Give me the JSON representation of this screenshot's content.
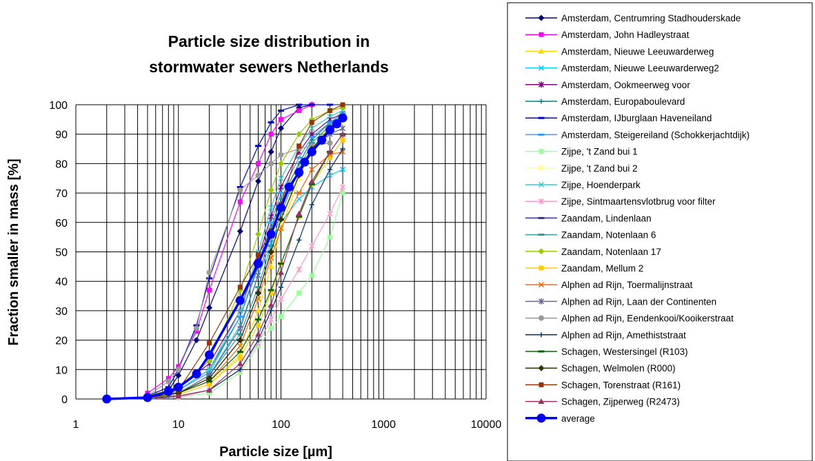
{
  "chart_data": {
    "type": "line",
    "title_lines": [
      "Particle size distribution in",
      "stormwater sewers Netherlands"
    ],
    "xlabel": "Particle size [µm]",
    "ylabel": "Fraction smaller in mass [%]",
    "x_scale": "log",
    "xlim": [
      1,
      10000
    ],
    "ylim": [
      0,
      100
    ],
    "x_ticks": [
      "1",
      "10",
      "100",
      "1000",
      "10000"
    ],
    "y_ticks": [
      "0",
      "10",
      "20",
      "30",
      "40",
      "50",
      "60",
      "70",
      "80",
      "90",
      "100"
    ],
    "grid": true,
    "legend_position": "right",
    "series": [
      {
        "name": "Amsterdam, Centrumring Stadhouderskade",
        "color": "#000080",
        "marker": "diamond",
        "x": [
          5,
          8,
          10,
          15,
          20,
          40,
          60,
          80,
          100,
          150,
          200
        ],
        "y": [
          1,
          3,
          8,
          20,
          31,
          57,
          74,
          84,
          92,
          99,
          100
        ]
      },
      {
        "name": "Amsterdam, John Hadleystraat",
        "color": "#ff00ff",
        "marker": "square",
        "x": [
          5,
          8,
          10,
          15,
          20,
          40,
          60,
          80,
          100,
          150,
          200
        ],
        "y": [
          2,
          7,
          11,
          23,
          37,
          67,
          80,
          90,
          95,
          98,
          100
        ]
      },
      {
        "name": "Amsterdam, Nieuwe Leeuwarderweg",
        "color": "#ffd700",
        "marker": "triangle",
        "x": [
          5,
          10,
          20,
          40,
          60,
          80,
          100,
          150,
          200,
          300,
          400
        ],
        "y": [
          0.5,
          1.5,
          5,
          15,
          30,
          45,
          58,
          75,
          85,
          93,
          96
        ]
      },
      {
        "name": "Amsterdam, Nieuwe Leeuwarderweg2",
        "color": "#00ccff",
        "marker": "x",
        "x": [
          5,
          10,
          20,
          40,
          60,
          80,
          100,
          150,
          200,
          300,
          400
        ],
        "y": [
          0.5,
          2,
          8,
          25,
          42,
          53,
          60,
          68,
          72,
          76,
          78
        ]
      },
      {
        "name": "Amsterdam, Ookmeerweg voor",
        "color": "#800080",
        "marker": "star",
        "x": [
          5,
          10,
          20,
          40,
          60,
          80,
          100,
          150,
          200,
          300,
          400
        ],
        "y": [
          1,
          4,
          12,
          30,
          48,
          62,
          72,
          84,
          90,
          95,
          97
        ]
      },
      {
        "name": "Amsterdam, Europaboulevard",
        "color": "#008080",
        "marker": "plus",
        "x": [
          5,
          10,
          20,
          40,
          60,
          80,
          100,
          150,
          200,
          300,
          400
        ],
        "y": [
          1,
          3,
          10,
          28,
          45,
          58,
          68,
          80,
          88,
          94,
          96
        ]
      },
      {
        "name": "Amsterdam, IJburglaan Haveneiland",
        "color": "#0000cc",
        "marker": "dash",
        "x": [
          5,
          8,
          10,
          15,
          20,
          40,
          60,
          80,
          100,
          150,
          200,
          300
        ],
        "y": [
          1,
          4,
          10,
          25,
          41,
          72,
          86,
          94,
          98,
          100,
          100,
          100
        ]
      },
      {
        "name": "Amsterdam, Steigereiland (Schokkerjachtdijk)",
        "color": "#3399ff",
        "marker": "dash",
        "x": [
          5,
          10,
          20,
          40,
          60,
          80,
          100,
          150,
          200,
          300,
          400
        ],
        "y": [
          1,
          3,
          9,
          28,
          46,
          60,
          70,
          82,
          89,
          94,
          97
        ]
      },
      {
        "name": "Zijpe, 't Zand bui 1",
        "color": "#99ff99",
        "marker": "square",
        "x": [
          5,
          10,
          20,
          40,
          60,
          80,
          100,
          150,
          200,
          300,
          400
        ],
        "y": [
          0,
          0.5,
          2,
          9,
          18,
          24,
          28,
          36,
          42,
          55,
          70
        ]
      },
      {
        "name": "Zijpe, 't Zand bui 2",
        "color": "#ffff99",
        "marker": "circle",
        "x": [
          5,
          10,
          20,
          40,
          60,
          80,
          100,
          150,
          200,
          300,
          400
        ],
        "y": [
          0.5,
          2,
          6,
          18,
          34,
          48,
          60,
          75,
          84,
          91,
          94
        ]
      },
      {
        "name": "Zijpe, Hoenderpark",
        "color": "#33cccc",
        "marker": "x",
        "x": [
          5,
          10,
          20,
          40,
          60,
          80,
          100,
          150,
          200,
          300,
          400
        ],
        "y": [
          1,
          3,
          10,
          30,
          50,
          65,
          75,
          86,
          92,
          96,
          98
        ]
      },
      {
        "name": "Zijpe, Sintmaartensvlotbrug voor filter",
        "color": "#ff99cc",
        "marker": "star",
        "x": [
          5,
          10,
          20,
          40,
          60,
          80,
          100,
          150,
          200,
          300,
          400
        ],
        "y": [
          0,
          0.5,
          3,
          10,
          19,
          27,
          34,
          44,
          52,
          63,
          72
        ]
      },
      {
        "name": "Zaandam, Lindenlaan",
        "color": "#333399",
        "marker": "dash",
        "x": [
          5,
          10,
          20,
          40,
          60,
          80,
          100,
          150,
          200,
          300,
          400
        ],
        "y": [
          0.5,
          2,
          7,
          20,
          36,
          50,
          61,
          76,
          85,
          92,
          95
        ]
      },
      {
        "name": "Zaandam, Notenlaan 6",
        "color": "#339999",
        "marker": "dash",
        "x": [
          5,
          10,
          20,
          40,
          60,
          80,
          100,
          150,
          200,
          300,
          400
        ],
        "y": [
          0.5,
          2,
          8,
          22,
          38,
          52,
          63,
          78,
          87,
          93,
          96
        ]
      },
      {
        "name": "Zaandam, Notenlaan 17",
        "color": "#99cc00",
        "marker": "diamond",
        "x": [
          5,
          10,
          20,
          40,
          60,
          80,
          100,
          150,
          200,
          300,
          400
        ],
        "y": [
          1,
          4,
          13,
          37,
          56,
          71,
          80,
          90,
          95,
          98,
          99
        ]
      },
      {
        "name": "Zaandam, Mellum 2",
        "color": "#ffcc00",
        "marker": "square",
        "x": [
          5,
          10,
          20,
          40,
          60,
          80,
          100,
          150,
          200,
          300,
          400
        ],
        "y": [
          0.5,
          1.5,
          5,
          14,
          25,
          36,
          46,
          62,
          73,
          82,
          88
        ]
      },
      {
        "name": "Alphen ad Rijn, Toermalijnstraat",
        "color": "#ff6600",
        "marker": "x",
        "x": [
          5,
          10,
          20,
          40,
          60,
          80,
          100,
          150,
          200,
          300,
          400
        ],
        "y": [
          0.5,
          2,
          6,
          18,
          34,
          48,
          58,
          70,
          78,
          83,
          84
        ]
      },
      {
        "name": "Alphen ad Rijn, Laan der Continenten",
        "color": "#666699",
        "marker": "star",
        "x": [
          5,
          10,
          20,
          40,
          60,
          80,
          100,
          150,
          200,
          300,
          400
        ],
        "y": [
          0.5,
          2,
          8,
          24,
          42,
          56,
          66,
          78,
          85,
          90,
          92
        ]
      },
      {
        "name": "Alphen ad Rijn, Eendenkooi/Kooikerstraat",
        "color": "#999999",
        "marker": "circle",
        "x": [
          5,
          8,
          10,
          15,
          20,
          40,
          60,
          80,
          100,
          150,
          200,
          300
        ],
        "y": [
          1,
          6,
          10,
          24,
          43,
          71,
          76,
          80,
          83,
          85,
          86,
          87
        ]
      },
      {
        "name": "Alphen ad Rijn, Amethiststraat",
        "color": "#003366",
        "marker": "plus",
        "x": [
          5,
          10,
          20,
          40,
          60,
          80,
          100,
          150,
          200,
          300,
          400
        ],
        "y": [
          0,
          1,
          3,
          10,
          20,
          30,
          38,
          54,
          66,
          78,
          85
        ]
      },
      {
        "name": "Schagen, Westersingel (R103)",
        "color": "#006600",
        "marker": "dash",
        "x": [
          5,
          10,
          20,
          40,
          60,
          80,
          100,
          150,
          200,
          300,
          400
        ],
        "y": [
          0.5,
          2,
          6,
          16,
          27,
          37,
          46,
          62,
          73,
          84,
          90
        ]
      },
      {
        "name": "Schagen, Welmolen (R000)",
        "color": "#333300",
        "marker": "diamond",
        "x": [
          5,
          10,
          20,
          40,
          60,
          80,
          100,
          150,
          200,
          300,
          400
        ],
        "y": [
          0.5,
          2,
          7,
          20,
          36,
          50,
          61,
          76,
          85,
          92,
          96
        ]
      },
      {
        "name": "Schagen, Torenstraat (R161)",
        "color": "#993300",
        "marker": "square",
        "x": [
          5,
          10,
          20,
          40,
          60,
          80,
          100,
          150,
          200,
          300,
          400
        ],
        "y": [
          1,
          3,
          19,
          38,
          49,
          57,
          66,
          86,
          94,
          98,
          100
        ]
      },
      {
        "name": "Schagen, Zijperweg (R2473)",
        "color": "#993366",
        "marker": "triangle",
        "x": [
          5,
          10,
          20,
          40,
          60,
          80,
          100,
          150,
          200,
          300,
          400
        ],
        "y": [
          0.5,
          1,
          3,
          12,
          22,
          32,
          43,
          63,
          74,
          84,
          90
        ]
      },
      {
        "name": "average",
        "color": "#0000ff",
        "marker": "circle-large",
        "x": [
          2,
          5,
          8,
          10,
          15,
          20,
          40,
          60,
          80,
          100,
          120,
          150,
          170,
          200,
          250,
          300,
          350,
          400
        ],
        "y": [
          0,
          0.5,
          2.5,
          4,
          8.5,
          15,
          33.5,
          46,
          56,
          65,
          72,
          77,
          80.5,
          84,
          88,
          91.5,
          93.5,
          95.5
        ]
      }
    ]
  }
}
